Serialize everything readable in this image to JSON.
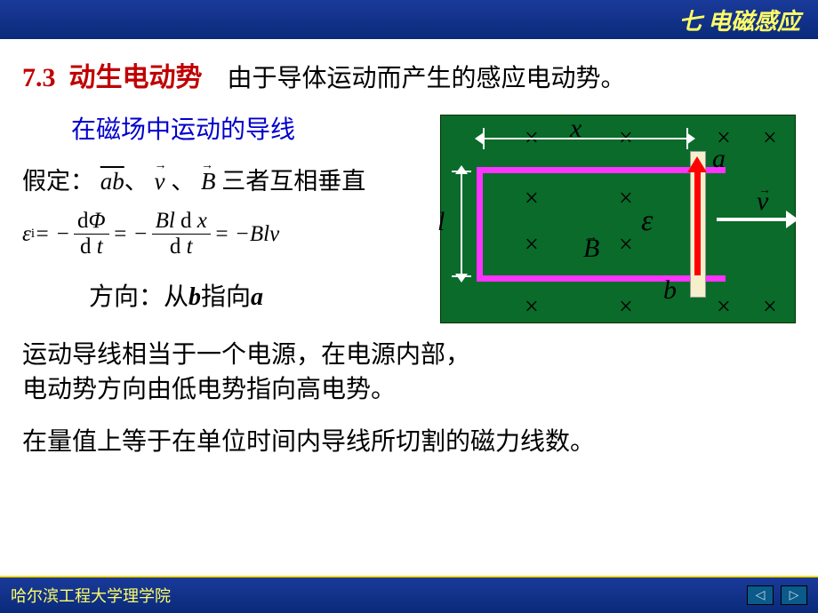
{
  "topbar": {
    "chapter": "七  电磁感应"
  },
  "title": {
    "num": "7.3",
    "name": "动生电动势",
    "desc": "由于导体运动而产生的感应电动势。"
  },
  "subtitle": "在磁场中运动的导线",
  "assume": {
    "prefix": "假定：",
    "ab": "ab",
    "sep1": "、",
    "v": "v",
    "sep2": "、",
    "B": "B",
    "suffix": "三者互相垂直"
  },
  "formula": {
    "lhs": "ε",
    "lhs_sub": "i",
    "eq1": " = −",
    "frac1_num_d": "d",
    "frac1_num_phi": "Φ",
    "frac1_den_d": "d",
    "frac1_den_t": " t",
    "eq2": " = −",
    "frac2_num": "Bl ",
    "frac2_num_d": "d",
    "frac2_num_x": " x",
    "frac2_den_d": "d",
    "frac2_den_t": " t",
    "eq3": " = −",
    "rhs": "Blv"
  },
  "direction": {
    "prefix": "方向：从",
    "b": "b",
    "mid": "指向",
    "a": "a"
  },
  "para1": "运动导线相当于一个电源，在电源内部，\n电动势方向由低电势指向高电势。",
  "para2": "在量值上等于在单位时间内导线所切割的磁力线数。",
  "diagram": {
    "bg": "#0a6b2a",
    "rail_color": "#ff33ff",
    "rod_color": "#f5f0cc",
    "arrow_color": "#ff0000",
    "labels": {
      "x": "x",
      "l": "l",
      "a": "a",
      "b": "b",
      "B": "B",
      "e": "ε",
      "v": "v"
    },
    "crosses": [
      {
        "t": 10,
        "l": 94
      },
      {
        "t": 10,
        "l": 200
      },
      {
        "t": 10,
        "l": 310
      },
      {
        "t": 10,
        "l": 362
      },
      {
        "t": 78,
        "l": 94
      },
      {
        "t": 78,
        "l": 200
      },
      {
        "t": 130,
        "l": 94
      },
      {
        "t": 130,
        "l": 200
      },
      {
        "t": 200,
        "l": 94
      },
      {
        "t": 200,
        "l": 200
      },
      {
        "t": 200,
        "l": 310
      },
      {
        "t": 200,
        "l": 362
      }
    ]
  },
  "footer": {
    "school": "哈尔滨工程大学理学院",
    "prev": "◁",
    "next": "▷"
  }
}
